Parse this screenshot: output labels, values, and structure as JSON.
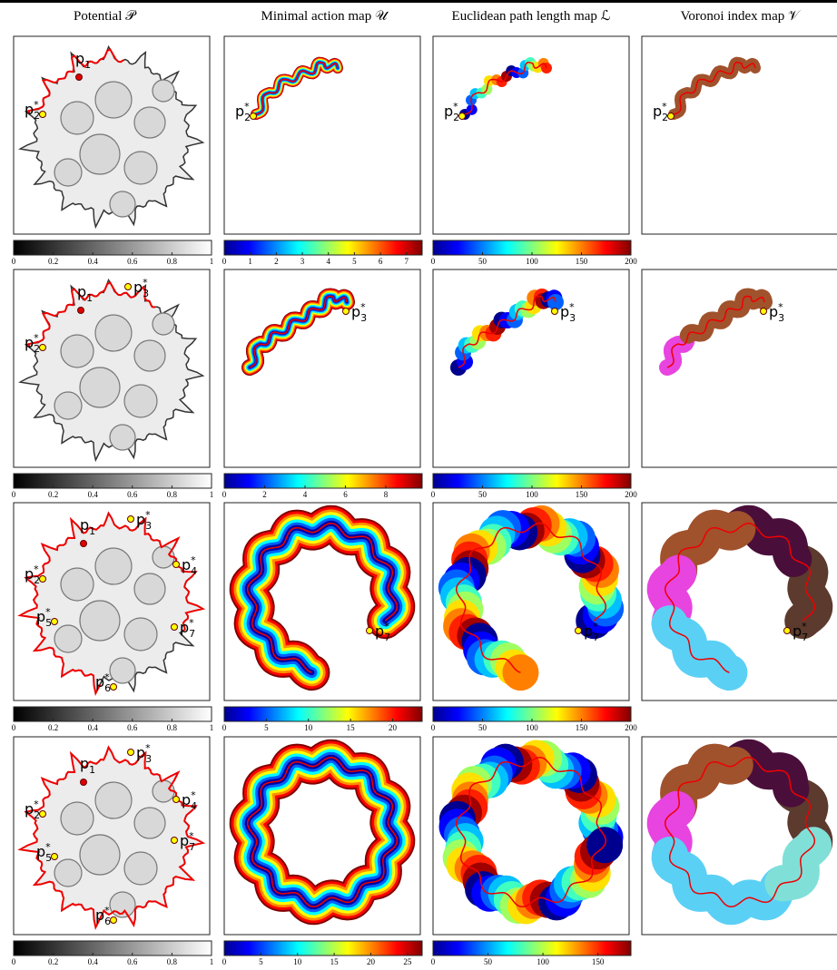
{
  "columns": [
    "Potential 𝒫",
    "Minimal action map 𝒰",
    "Euclidean path length map ℒ",
    "Voronoi index map 𝒱"
  ],
  "rows": [
    {
      "labels": [
        [
          {
            "base": "p",
            "sub": "1"
          },
          {
            "base": "p",
            "sub": "2",
            "sup": "*"
          }
        ],
        [
          {
            "base": "p",
            "sub": "2",
            "sup": "*"
          }
        ],
        [
          {
            "base": "p",
            "sub": "2",
            "sup": "*"
          }
        ],
        [
          {
            "base": "p",
            "sub": "2",
            "sup": "*"
          }
        ]
      ],
      "colorbars": [
        {
          "range": [
            0,
            1
          ],
          "ticks": [
            0,
            0.2,
            0.4,
            0.6,
            0.8,
            1
          ]
        },
        {
          "range": [
            0,
            7.6
          ],
          "ticks": [
            0,
            1,
            2,
            3,
            4,
            5,
            6,
            7
          ]
        },
        {
          "range": [
            0,
            200
          ],
          "ticks": [
            0,
            50,
            100,
            150,
            200
          ]
        }
      ]
    },
    {
      "labels": [
        [
          {
            "base": "p",
            "sub": "1"
          },
          {
            "base": "p",
            "sub": "3",
            "sup": "*"
          },
          {
            "base": "p",
            "sub": "2",
            "sup": "*"
          }
        ],
        [
          {
            "base": "p",
            "sub": "3",
            "sup": "*"
          }
        ],
        [
          {
            "base": "p",
            "sub": "3",
            "sup": "*"
          }
        ],
        [
          {
            "base": "p",
            "sub": "3",
            "sup": "*"
          }
        ]
      ],
      "colorbars": [
        {
          "range": [
            0,
            1
          ],
          "ticks": [
            0,
            0.2,
            0.4,
            0.6,
            0.8,
            1
          ]
        },
        {
          "range": [
            0,
            9.8
          ],
          "ticks": [
            0,
            2,
            4,
            6,
            8
          ]
        },
        {
          "range": [
            0,
            200
          ],
          "ticks": [
            0,
            50,
            100,
            150,
            200
          ]
        }
      ]
    },
    {
      "labels": [
        [
          {
            "base": "p",
            "sub": "1"
          },
          {
            "base": "p",
            "sub": "3",
            "sup": "*"
          },
          {
            "base": "p",
            "sub": "4",
            "sup": "*"
          },
          {
            "base": "p",
            "sub": "2",
            "sup": "*"
          },
          {
            "base": "p",
            "sub": "5",
            "sup": "*"
          },
          {
            "base": "p",
            "sub": "7",
            "sup": "*"
          },
          {
            "base": "p",
            "sub": "6",
            "sup": "*"
          }
        ],
        [
          {
            "base": "p",
            "sub": "7",
            "sup": "*"
          }
        ],
        [
          {
            "base": "p",
            "sub": "7",
            "sup": "*"
          }
        ],
        [
          {
            "base": "p",
            "sub": "7",
            "sup": "*"
          }
        ]
      ],
      "colorbars": [
        {
          "range": [
            0,
            1
          ],
          "ticks": [
            0,
            0.2,
            0.4,
            0.6,
            0.8,
            1
          ]
        },
        {
          "range": [
            0,
            23.5
          ],
          "ticks": [
            0,
            5,
            10,
            15,
            20
          ]
        },
        {
          "range": [
            0,
            200
          ],
          "ticks": [
            0,
            50,
            100,
            150,
            200
          ]
        }
      ]
    },
    {
      "labels": [
        [
          {
            "base": "p",
            "sub": "1"
          },
          {
            "base": "p",
            "sub": "3",
            "sup": "*"
          },
          {
            "base": "p",
            "sub": "4",
            "sup": "*"
          },
          {
            "base": "p",
            "sub": "2",
            "sup": "*"
          },
          {
            "base": "p",
            "sub": "7",
            "sup": "*"
          },
          {
            "base": "p",
            "sub": "5",
            "sup": "*"
          },
          {
            "base": "p",
            "sub": "6",
            "sup": "*"
          }
        ],
        [],
        [],
        []
      ],
      "colorbars": [
        {
          "range": [
            0,
            1
          ],
          "ticks": [
            0,
            0.2,
            0.4,
            0.6,
            0.8,
            1
          ]
        },
        {
          "range": [
            0,
            27
          ],
          "ticks": [
            0,
            5,
            10,
            15,
            20,
            25
          ]
        },
        {
          "range": [
            0,
            180
          ],
          "ticks": [
            0,
            50,
            100,
            150
          ]
        }
      ]
    }
  ]
}
